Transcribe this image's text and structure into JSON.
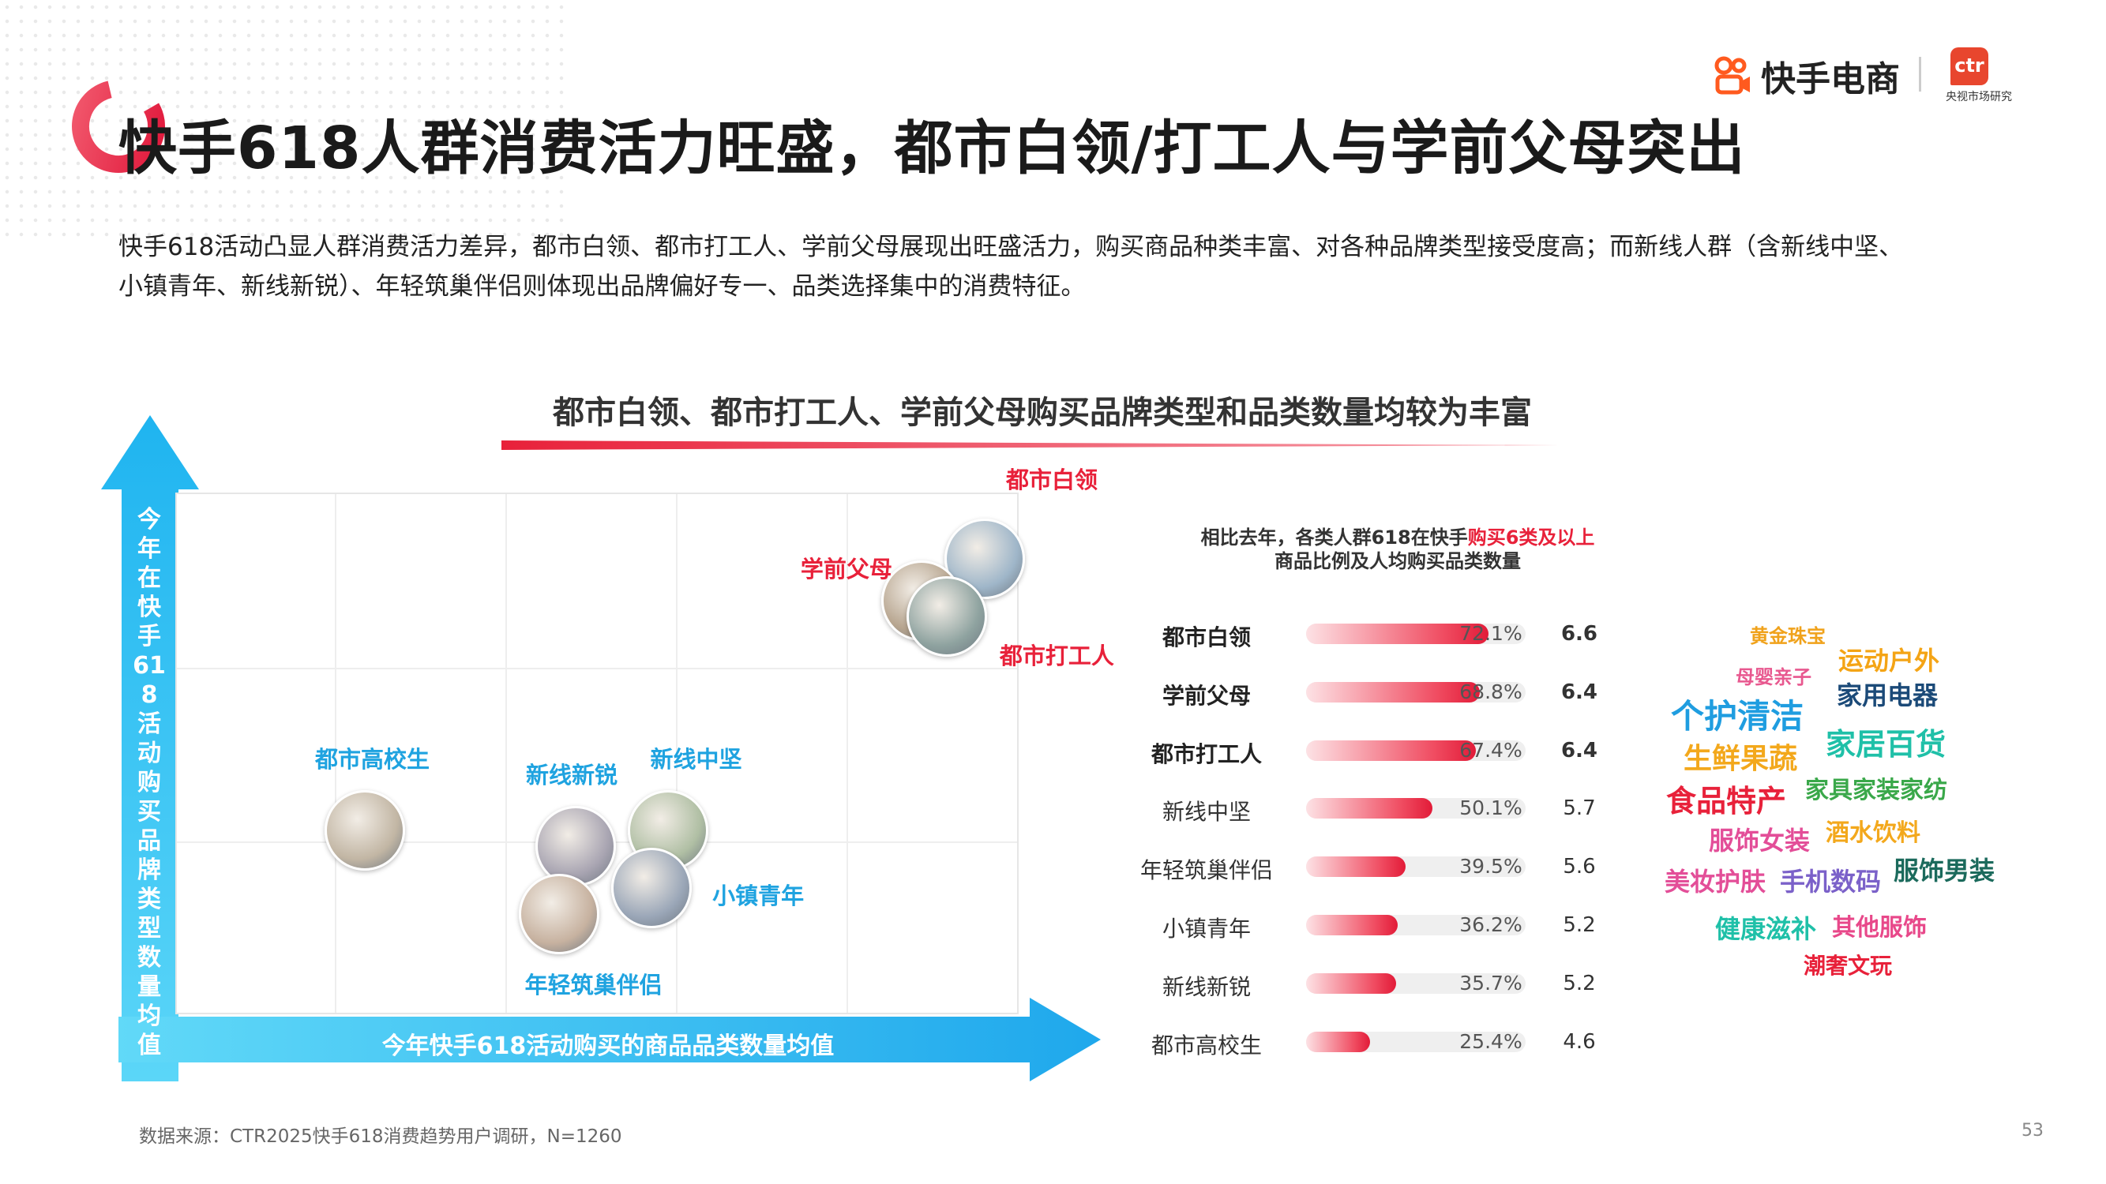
{
  "header": {
    "title": "快手618人群消费活力旺盛，都市白领/打工人与学前父母突出",
    "brand_name": "快手电商",
    "ctr_logo": "ctr",
    "ctr_sub": "央视市场研究"
  },
  "description": "快手618活动凸显人群消费活力差异，都市白领、都市打工人、学前父母展现出旺盛活力，购买商品种类丰富、对各种品牌类型接受度高；而新线人群（含新线中坚、小镇青年、新线新锐）、年轻筑巢伴侣则体现出品牌偏好专一、品类选择集中的消费特征。",
  "subtitle": "都市白领、都市打工人、学前父母购买品牌类型和品类数量均较为丰富",
  "chart_data": [
    {
      "type": "scatter",
      "xlabel": "今年快手618活动购买的商品品类数量均值",
      "ylabel": "今年在快手618活动购买品牌类型数量均值",
      "grid": true,
      "points": [
        {
          "name": "都市白领",
          "x": 0.955,
          "y": 0.88,
          "color": "#e8213a"
        },
        {
          "name": "学前父母",
          "x": 0.88,
          "y": 0.8,
          "color": "#e8213a"
        },
        {
          "name": "都市打工人",
          "x": 0.91,
          "y": 0.77,
          "color": "#e8213a"
        },
        {
          "name": "都市高校生",
          "x": 0.22,
          "y": 0.36,
          "color": "#1fa3e0"
        },
        {
          "name": "新线新锐",
          "x": 0.47,
          "y": 0.33,
          "color": "#1fa3e0"
        },
        {
          "name": "新线中坚",
          "x": 0.58,
          "y": 0.36,
          "color": "#1fa3e0"
        },
        {
          "name": "小镇青年",
          "x": 0.56,
          "y": 0.25,
          "color": "#1fa3e0"
        },
        {
          "name": "年轻筑巢伴侣",
          "x": 0.45,
          "y": 0.2,
          "color": "#1fa3e0"
        }
      ]
    },
    {
      "type": "bar",
      "title_parts": [
        "相比去年，各类人群618在快手",
        "购买6类及以上",
        "商品比例及人均购买品类数量"
      ],
      "categories": [
        "都市白领",
        "学前父母",
        "都市打工人",
        "新线中坚",
        "年轻筑巢伴侣",
        "小镇青年",
        "新线新锐",
        "都市高校生"
      ],
      "values": [
        72.1,
        68.8,
        67.4,
        50.1,
        39.5,
        36.2,
        35.7,
        25.4
      ],
      "value_labels": [
        "72.1%",
        "68.8%",
        "67.4%",
        "50.1%",
        "39.5%",
        "36.2%",
        "35.7%",
        "25.4%"
      ],
      "avg_counts": [
        "6.6",
        "6.4",
        "6.4",
        "5.7",
        "5.6",
        "5.2",
        "5.2",
        "4.6"
      ],
      "highlight_count": 3,
      "ylim": [
        0,
        100
      ]
    }
  ],
  "word_cloud": [
    {
      "text": "黄金珠宝",
      "color": "#f0a21b"
    },
    {
      "text": "运动户外",
      "color": "#f4a415"
    },
    {
      "text": "母婴亲子",
      "color": "#e8588f"
    },
    {
      "text": "家用电器",
      "color": "#1b4a78"
    },
    {
      "text": "个护清洁",
      "color": "#1f9de0"
    },
    {
      "text": "家居百货",
      "color": "#1fc0a8"
    },
    {
      "text": "生鲜果蔬",
      "color": "#f3a81c"
    },
    {
      "text": "食品特产",
      "color": "#e8213a"
    },
    {
      "text": "家具家装家纺",
      "color": "#3aa84a"
    },
    {
      "text": "服饰女装",
      "color": "#e34e98"
    },
    {
      "text": "酒水饮料",
      "color": "#f3a81c"
    },
    {
      "text": "美妆护肤",
      "color": "#e34e98"
    },
    {
      "text": "手机数码",
      "color": "#7b61c9"
    },
    {
      "text": "服饰男装",
      "color": "#1b6a5c"
    },
    {
      "text": "健康滋补",
      "color": "#1fc0a8"
    },
    {
      "text": "其他服饰",
      "color": "#e8488a"
    },
    {
      "text": "潮奢文玩",
      "color": "#e8213a"
    }
  ],
  "footer": {
    "source": "数据来源：CTR2025快手618消费趋势用户调研，N=1260",
    "page": "53"
  }
}
